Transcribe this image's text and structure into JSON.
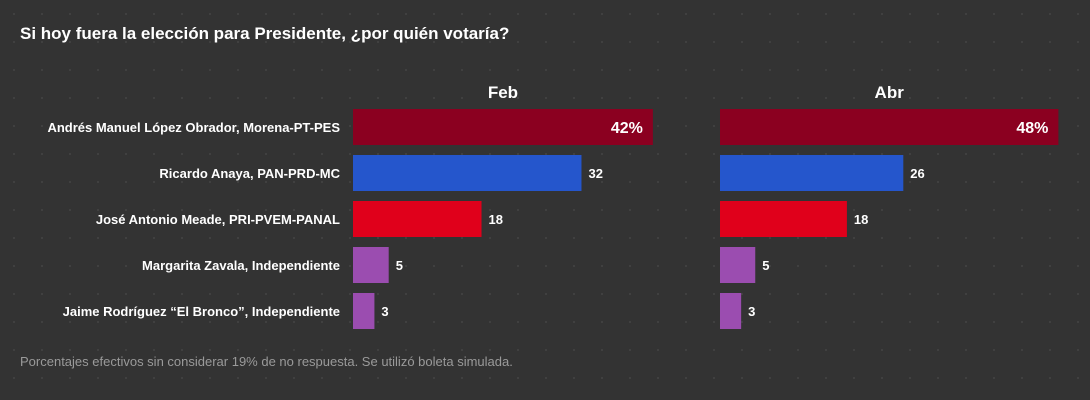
{
  "title": "Si hoy fuera la elección para Presidente, ¿por quién votaría?",
  "footnote": "Porcentajes efectivos sin considerar 19% de no respuesta. Se utilizó boleta simulada.",
  "chart_data": {
    "type": "bar",
    "orientation": "horizontal",
    "categories": [
      "Andrés Manuel López Obrador, Morena-PT-PES",
      "Ricardo Anaya, PAN-PRD-MC",
      "José Antonio Meade, PRI-PVEM-PANAL",
      "Margarita Zavala, Independiente",
      "Jaime Rodríguez “El Bronco”, Independiente"
    ],
    "series": [
      {
        "name": "Feb",
        "values": [
          42,
          32,
          18,
          5,
          3
        ],
        "labels": [
          "42%",
          "32",
          "18",
          "5",
          "3"
        ]
      },
      {
        "name": "Abr",
        "values": [
          48,
          26,
          18,
          5,
          3
        ],
        "labels": [
          "48%",
          "26",
          "18",
          "5",
          "3"
        ]
      }
    ],
    "bar_colors": [
      "#8b0020",
      "#2556cc",
      "#e0001b",
      "#9b4db0",
      "#9b4db0"
    ],
    "grid": false,
    "legend": "none"
  }
}
